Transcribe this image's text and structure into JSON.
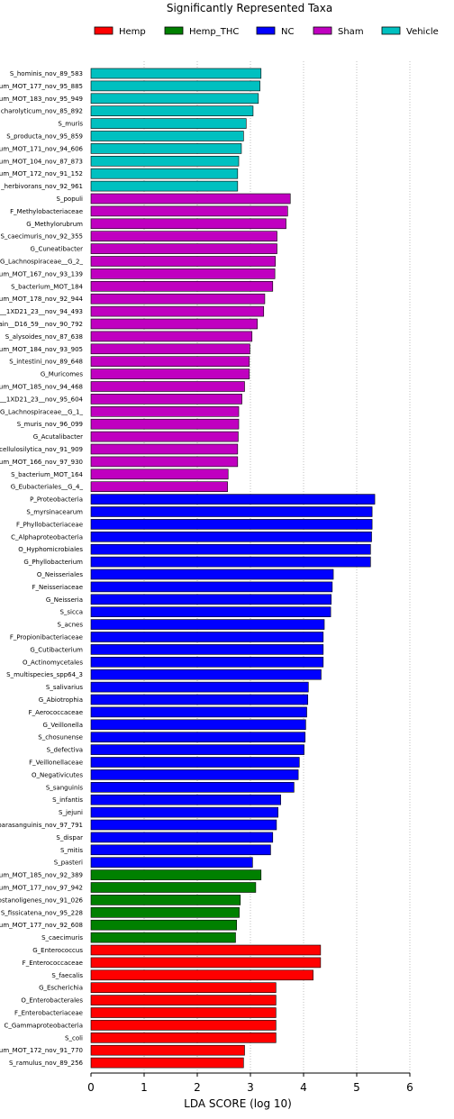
{
  "chart_data": {
    "type": "bar",
    "orientation": "horizontal",
    "title": "Significantly Represented Taxa",
    "xlabel": "LDA SCORE (log 10)",
    "xlim": [
      0,
      6
    ],
    "xticks": [
      "0",
      "1",
      "2",
      "3",
      "4",
      "5",
      "6"
    ],
    "grid": "vertical dotted",
    "legend_position": "top",
    "series": [
      {
        "name": "Hemp",
        "color": "#ff0000"
      },
      {
        "name": "Hemp_THC",
        "color": "#008000"
      },
      {
        "name": "NC",
        "color": "#0000ff"
      },
      {
        "name": "Sham",
        "color": "#c000c0"
      },
      {
        "name": "Vehicle",
        "color": "#00c0c0"
      }
    ],
    "bars": [
      {
        "label": "S_hominis_nov_89_583",
        "value": 3.2,
        "group": "Vehicle"
      },
      {
        "label": "um_MOT_177_nov_95_885",
        "value": 3.18,
        "group": "Vehicle"
      },
      {
        "label": "um_MOT_183_nov_95_949",
        "value": 3.15,
        "group": "Vehicle"
      },
      {
        "label": "charolyticum_nov_85_892",
        "value": 3.05,
        "group": "Vehicle"
      },
      {
        "label": "S_muris",
        "value": 2.92,
        "group": "Vehicle"
      },
      {
        "label": "S_producta_nov_95_859",
        "value": 2.87,
        "group": "Vehicle"
      },
      {
        "label": "um_MOT_171_nov_94_606",
        "value": 2.83,
        "group": "Vehicle"
      },
      {
        "label": "um_MOT_104_nov_87_873",
        "value": 2.78,
        "group": "Vehicle"
      },
      {
        "label": "um_MOT_172_nov_91_152",
        "value": 2.76,
        "group": "Vehicle"
      },
      {
        "label": "_herbivorans_nov_92_961",
        "value": 2.76,
        "group": "Vehicle"
      },
      {
        "label": "S_populi",
        "value": 3.75,
        "group": "Sham"
      },
      {
        "label": "F_Methylobacteriaceae",
        "value": 3.7,
        "group": "Sham"
      },
      {
        "label": "G_Methylorubrum",
        "value": 3.67,
        "group": "Sham"
      },
      {
        "label": "S_caecimuris_nov_92_355",
        "value": 3.5,
        "group": "Sham"
      },
      {
        "label": "G_Cuneatibacter",
        "value": 3.5,
        "group": "Sham"
      },
      {
        "label": "G_Lachnospiraceae__G_2_",
        "value": 3.47,
        "group": "Sham"
      },
      {
        "label": "um_MOT_167_nov_93_139",
        "value": 3.46,
        "group": "Sham"
      },
      {
        "label": "S_bacterium_MOT_184",
        "value": 3.42,
        "group": "Sham"
      },
      {
        "label": "um_MOT_178_nov_92_944",
        "value": 3.27,
        "group": "Sham"
      },
      {
        "label": "__1XD21_23__nov_94_493",
        "value": 3.25,
        "group": "Sham"
      },
      {
        "label": "ain__D16_59__nov_90_792",
        "value": 3.13,
        "group": "Sham"
      },
      {
        "label": "S_alysoides_nov_87_638",
        "value": 3.03,
        "group": "Sham"
      },
      {
        "label": "um_MOT_184_nov_93_905",
        "value": 2.99,
        "group": "Sham"
      },
      {
        "label": "S_intestini_nov_89_648",
        "value": 2.98,
        "group": "Sham"
      },
      {
        "label": "G_Muricomes",
        "value": 2.98,
        "group": "Sham"
      },
      {
        "label": "um_MOT_185_nov_94_468",
        "value": 2.89,
        "group": "Sham"
      },
      {
        "label": "__1XD21_23__nov_95_604",
        "value": 2.84,
        "group": "Sham"
      },
      {
        "label": "G_Lachnospiraceae__G_1_",
        "value": 2.78,
        "group": "Sham"
      },
      {
        "label": "S_muris_nov_96_099",
        "value": 2.78,
        "group": "Sham"
      },
      {
        "label": "G_Acutalibacter",
        "value": 2.77,
        "group": "Sham"
      },
      {
        "label": "cellulosilytica_nov_91_909",
        "value": 2.76,
        "group": "Sham"
      },
      {
        "label": "um_MOT_166_nov_97_930",
        "value": 2.76,
        "group": "Sham"
      },
      {
        "label": "S_bacterium_MOT_164",
        "value": 2.58,
        "group": "Sham"
      },
      {
        "label": "G_Eubacteriales__G_4_",
        "value": 2.57,
        "group": "Sham"
      },
      {
        "label": "P_Proteobacteria",
        "value": 5.34,
        "group": "NC"
      },
      {
        "label": "S_myrsinacearum",
        "value": 5.29,
        "group": "NC"
      },
      {
        "label": "F_Phyllobacteriaceae",
        "value": 5.29,
        "group": "NC"
      },
      {
        "label": "C_Alphaproteobacteria",
        "value": 5.28,
        "group": "NC"
      },
      {
        "label": "O_Hyphomicrobiales",
        "value": 5.26,
        "group": "NC"
      },
      {
        "label": "G_Phyllobacterium",
        "value": 5.26,
        "group": "NC"
      },
      {
        "label": "O_Neisseriales",
        "value": 4.56,
        "group": "NC"
      },
      {
        "label": "F_Neisseriaceae",
        "value": 4.54,
        "group": "NC"
      },
      {
        "label": "G_Neisseria",
        "value": 4.52,
        "group": "NC"
      },
      {
        "label": "S_sicca",
        "value": 4.51,
        "group": "NC"
      },
      {
        "label": "S_acnes",
        "value": 4.39,
        "group": "NC"
      },
      {
        "label": "F_Propionibacteriaceae",
        "value": 4.37,
        "group": "NC"
      },
      {
        "label": "G_Cutibacterium",
        "value": 4.37,
        "group": "NC"
      },
      {
        "label": "O_Actinomycetales",
        "value": 4.37,
        "group": "NC"
      },
      {
        "label": "S_multispecies_spp64_3",
        "value": 4.33,
        "group": "NC"
      },
      {
        "label": "S_salivarius",
        "value": 4.09,
        "group": "NC"
      },
      {
        "label": "G_Abiotrophia",
        "value": 4.08,
        "group": "NC"
      },
      {
        "label": "F_Aerococcaceae",
        "value": 4.06,
        "group": "NC"
      },
      {
        "label": "G_Veillonella",
        "value": 4.04,
        "group": "NC"
      },
      {
        "label": "S_chosunense",
        "value": 4.03,
        "group": "NC"
      },
      {
        "label": "S_defectiva",
        "value": 4.01,
        "group": "NC"
      },
      {
        "label": "F_Veillonellaceae",
        "value": 3.92,
        "group": "NC"
      },
      {
        "label": "O_Negativicutes",
        "value": 3.9,
        "group": "NC"
      },
      {
        "label": "S_sanguinis",
        "value": 3.82,
        "group": "NC"
      },
      {
        "label": "S_infantis",
        "value": 3.57,
        "group": "NC"
      },
      {
        "label": "S_jejuni",
        "value": 3.52,
        "group": "NC"
      },
      {
        "label": "parasanguinis_nov_97_791",
        "value": 3.49,
        "group": "NC"
      },
      {
        "label": "S_dispar",
        "value": 3.42,
        "group": "NC"
      },
      {
        "label": "S_mitis",
        "value": 3.38,
        "group": "NC"
      },
      {
        "label": "S_pasteri",
        "value": 3.04,
        "group": "NC"
      },
      {
        "label": "um_MOT_185_nov_92_389",
        "value": 3.2,
        "group": "Hemp_THC"
      },
      {
        "label": "um_MOT_177_nov_97_942",
        "value": 3.1,
        "group": "Hemp_THC"
      },
      {
        "label": "ostanoligenes_nov_91_026",
        "value": 2.81,
        "group": "Hemp_THC"
      },
      {
        "label": "S_fissicatena_nov_95_228",
        "value": 2.79,
        "group": "Hemp_THC"
      },
      {
        "label": "um_MOT_177_nov_92_608",
        "value": 2.74,
        "group": "Hemp_THC"
      },
      {
        "label": "S_caecimuris",
        "value": 2.72,
        "group": "Hemp_THC"
      },
      {
        "label": "G_Enterococcus",
        "value": 4.32,
        "group": "Hemp"
      },
      {
        "label": "F_Enterococcaceae",
        "value": 4.32,
        "group": "Hemp"
      },
      {
        "label": "S_faecalis",
        "value": 4.18,
        "group": "Hemp"
      },
      {
        "label": "G_Escherichia",
        "value": 3.48,
        "group": "Hemp"
      },
      {
        "label": "O_Enterobacterales",
        "value": 3.48,
        "group": "Hemp"
      },
      {
        "label": "F_Enterobacteriaceae",
        "value": 3.48,
        "group": "Hemp"
      },
      {
        "label": "C_Gammaproteobacteria",
        "value": 3.48,
        "group": "Hemp"
      },
      {
        "label": "S_coli",
        "value": 3.48,
        "group": "Hemp"
      },
      {
        "label": "um_MOT_172_nov_91_770",
        "value": 2.89,
        "group": "Hemp"
      },
      {
        "label": "S_ramulus_nov_89_256",
        "value": 2.87,
        "group": "Hemp"
      }
    ]
  }
}
